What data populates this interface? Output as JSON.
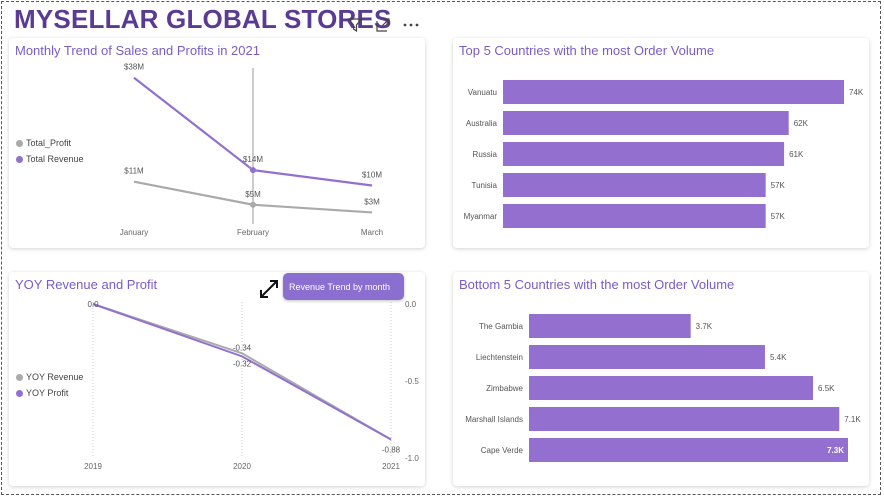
{
  "dashboard": {
    "title": "MYSELLAR GLOBAL STORES",
    "header_icons": [
      "filter-icon",
      "focus-mode-icon",
      "more-options-icon"
    ],
    "accent_color": "#9370d0",
    "title_color": "#5b3a94"
  },
  "tooltip": {
    "text": "Revenue Trend by month"
  },
  "charts": {
    "monthly_trend": {
      "title": "Monthly Trend of Sales and Profits in 2021",
      "legend": [
        "Total_Profit",
        "Total Revenue"
      ]
    },
    "top5": {
      "title": "Top 5 Countries with the most Order Volume"
    },
    "yoy": {
      "title": "YOY Revenue and Profit",
      "legend": [
        "YOY Revenue",
        "YOY Profit"
      ]
    },
    "bottom5": {
      "title": "Bottom 5 Countries with the most Order Volume"
    }
  },
  "chart_data": [
    {
      "type": "line",
      "title": "Monthly Trend of Sales and Profits in 2021",
      "categories": [
        "January",
        "February",
        "March"
      ],
      "series": [
        {
          "name": "Total_Profit",
          "color": "#aaaaaa",
          "values": [
            11,
            5,
            3
          ],
          "labels": [
            "$11M",
            "$5M",
            "$3M"
          ]
        },
        {
          "name": "Total Revenue",
          "color": "#9370d0",
          "values": [
            38,
            14,
            10
          ],
          "labels": [
            "$38M",
            "$14M",
            "$10M"
          ]
        }
      ],
      "legend": "left",
      "grid": false
    },
    {
      "type": "bar",
      "orientation": "horizontal",
      "title": "Top 5 Countries with the most Order Volume",
      "categories": [
        "Vanuatu",
        "Australia",
        "Russia",
        "Tunisia",
        "Myanmar"
      ],
      "values": [
        74,
        62,
        61,
        57,
        57
      ],
      "labels": [
        "74K",
        "62K",
        "61K",
        "57K",
        "57K"
      ],
      "color": "#9370d0"
    },
    {
      "type": "line",
      "title": "YOY Revenue and Profit",
      "categories": [
        "2019",
        "2020",
        "2021"
      ],
      "series": [
        {
          "name": "YOY Revenue",
          "color": "#aaaaaa",
          "values": [
            0.0,
            -0.32,
            -0.88
          ],
          "labels": [
            "0.0",
            "-0.32",
            "-0.88"
          ]
        },
        {
          "name": "YOY Profit",
          "color": "#9370d0",
          "values": [
            0.0,
            -0.34,
            -0.88
          ],
          "labels": [
            "0.0",
            "-0.34",
            ""
          ]
        }
      ],
      "y_ticks": [
        "0.0",
        "-0.5",
        "-1.0"
      ],
      "ylim": [
        -1.0,
        0.0
      ],
      "legend": "left",
      "grid": true
    },
    {
      "type": "bar",
      "orientation": "horizontal",
      "title": "Bottom 5 Countries with the most Order Volume",
      "categories": [
        "The Gambia",
        "Liechtenstein",
        "Zimbabwe",
        "Marshall Islands",
        "Cape Verde"
      ],
      "values": [
        3.7,
        5.4,
        6.5,
        7.1,
        7.3
      ],
      "labels": [
        "3.7K",
        "5.4K",
        "6.5K",
        "7.1K",
        "7.3K"
      ],
      "color": "#9370d0"
    }
  ]
}
